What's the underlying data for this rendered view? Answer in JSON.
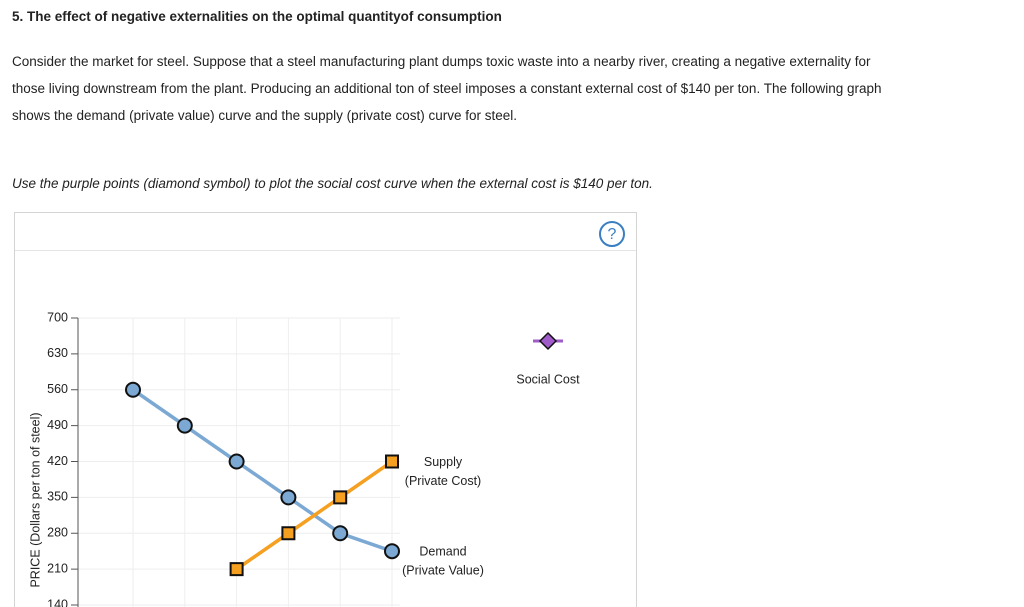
{
  "header": {
    "title": "5. The effect of negative externalities on the optimal quantityof consumption"
  },
  "intro": {
    "lines": [
      "Consider the market for steel. Suppose that a steel manufacturing plant dumps toxic waste into a nearby river, creating a negative externality for",
      "those living downstream from the plant. Producing an additional ton of steel imposes a constant external cost of $140 per ton. The following graph",
      "shows the demand (private value) curve and the supply (private cost) curve for steel."
    ]
  },
  "instruction": "Use the purple points (diamond symbol) to plot the social cost curve when the external cost is $140 per ton.",
  "help": "?",
  "chart_data": {
    "type": "line",
    "y_label": "PRICE (Dollars per ton of steel)",
    "categories": [
      null,
      null,
      null,
      null,
      null,
      null
    ],
    "series": [
      {
        "name": "Demand",
        "subname": "(Private Value)",
        "color": "#7ca9d4",
        "marker": "circle",
        "values": [
          560,
          490,
          420,
          350,
          280,
          245
        ]
      },
      {
        "name": "Supply",
        "subname": "(Private Cost)",
        "color": "#f5a020",
        "marker": "square",
        "values": [
          null,
          null,
          210,
          280,
          350,
          420
        ]
      }
    ],
    "tool": {
      "name": "Social Cost",
      "color": "#a05cc8"
    },
    "ylim": [
      140,
      700
    ],
    "yticks": [
      140,
      210,
      280,
      350,
      420,
      490,
      560,
      630,
      700
    ],
    "grid": true
  }
}
